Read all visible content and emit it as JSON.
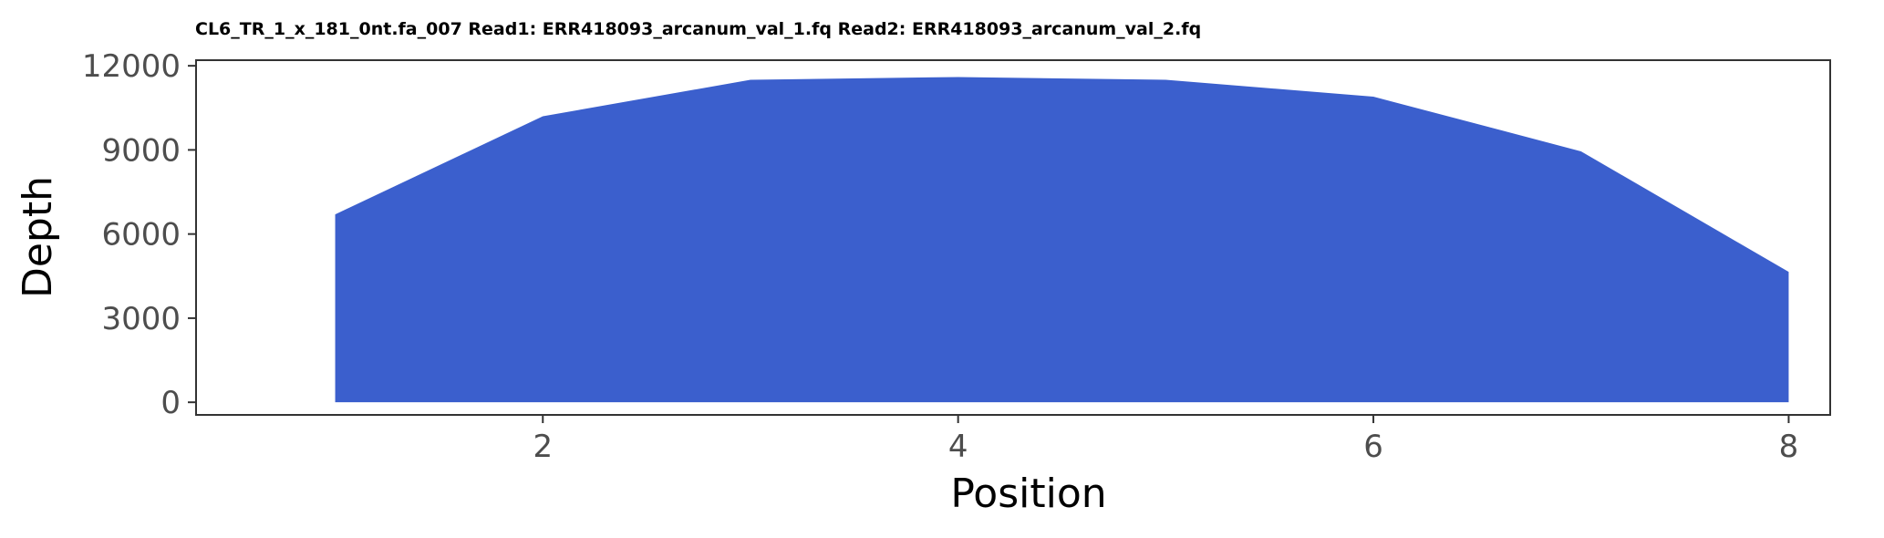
{
  "chart_data": {
    "type": "area",
    "title": "CL6_TR_1_x_181_0nt.fa_007 Read1: ERR418093_arcanum_val_1.fq Read2: ERR418093_arcanum_val_2.fq",
    "xlabel": "Position",
    "ylabel": "Depth",
    "x": [
      1,
      2,
      3,
      4,
      5,
      6,
      7,
      8
    ],
    "values": [
      6700,
      10200,
      11500,
      11600,
      11500,
      10900,
      8950,
      4650
    ],
    "xlim": [
      0.33,
      8.2
    ],
    "ylim": [
      -450,
      12200
    ],
    "xticks": [
      2,
      4,
      6,
      8
    ],
    "yticks": [
      0,
      3000,
      6000,
      9000,
      12000
    ],
    "fill_color": "#3b5fcd",
    "grid": false,
    "legend": "none"
  }
}
